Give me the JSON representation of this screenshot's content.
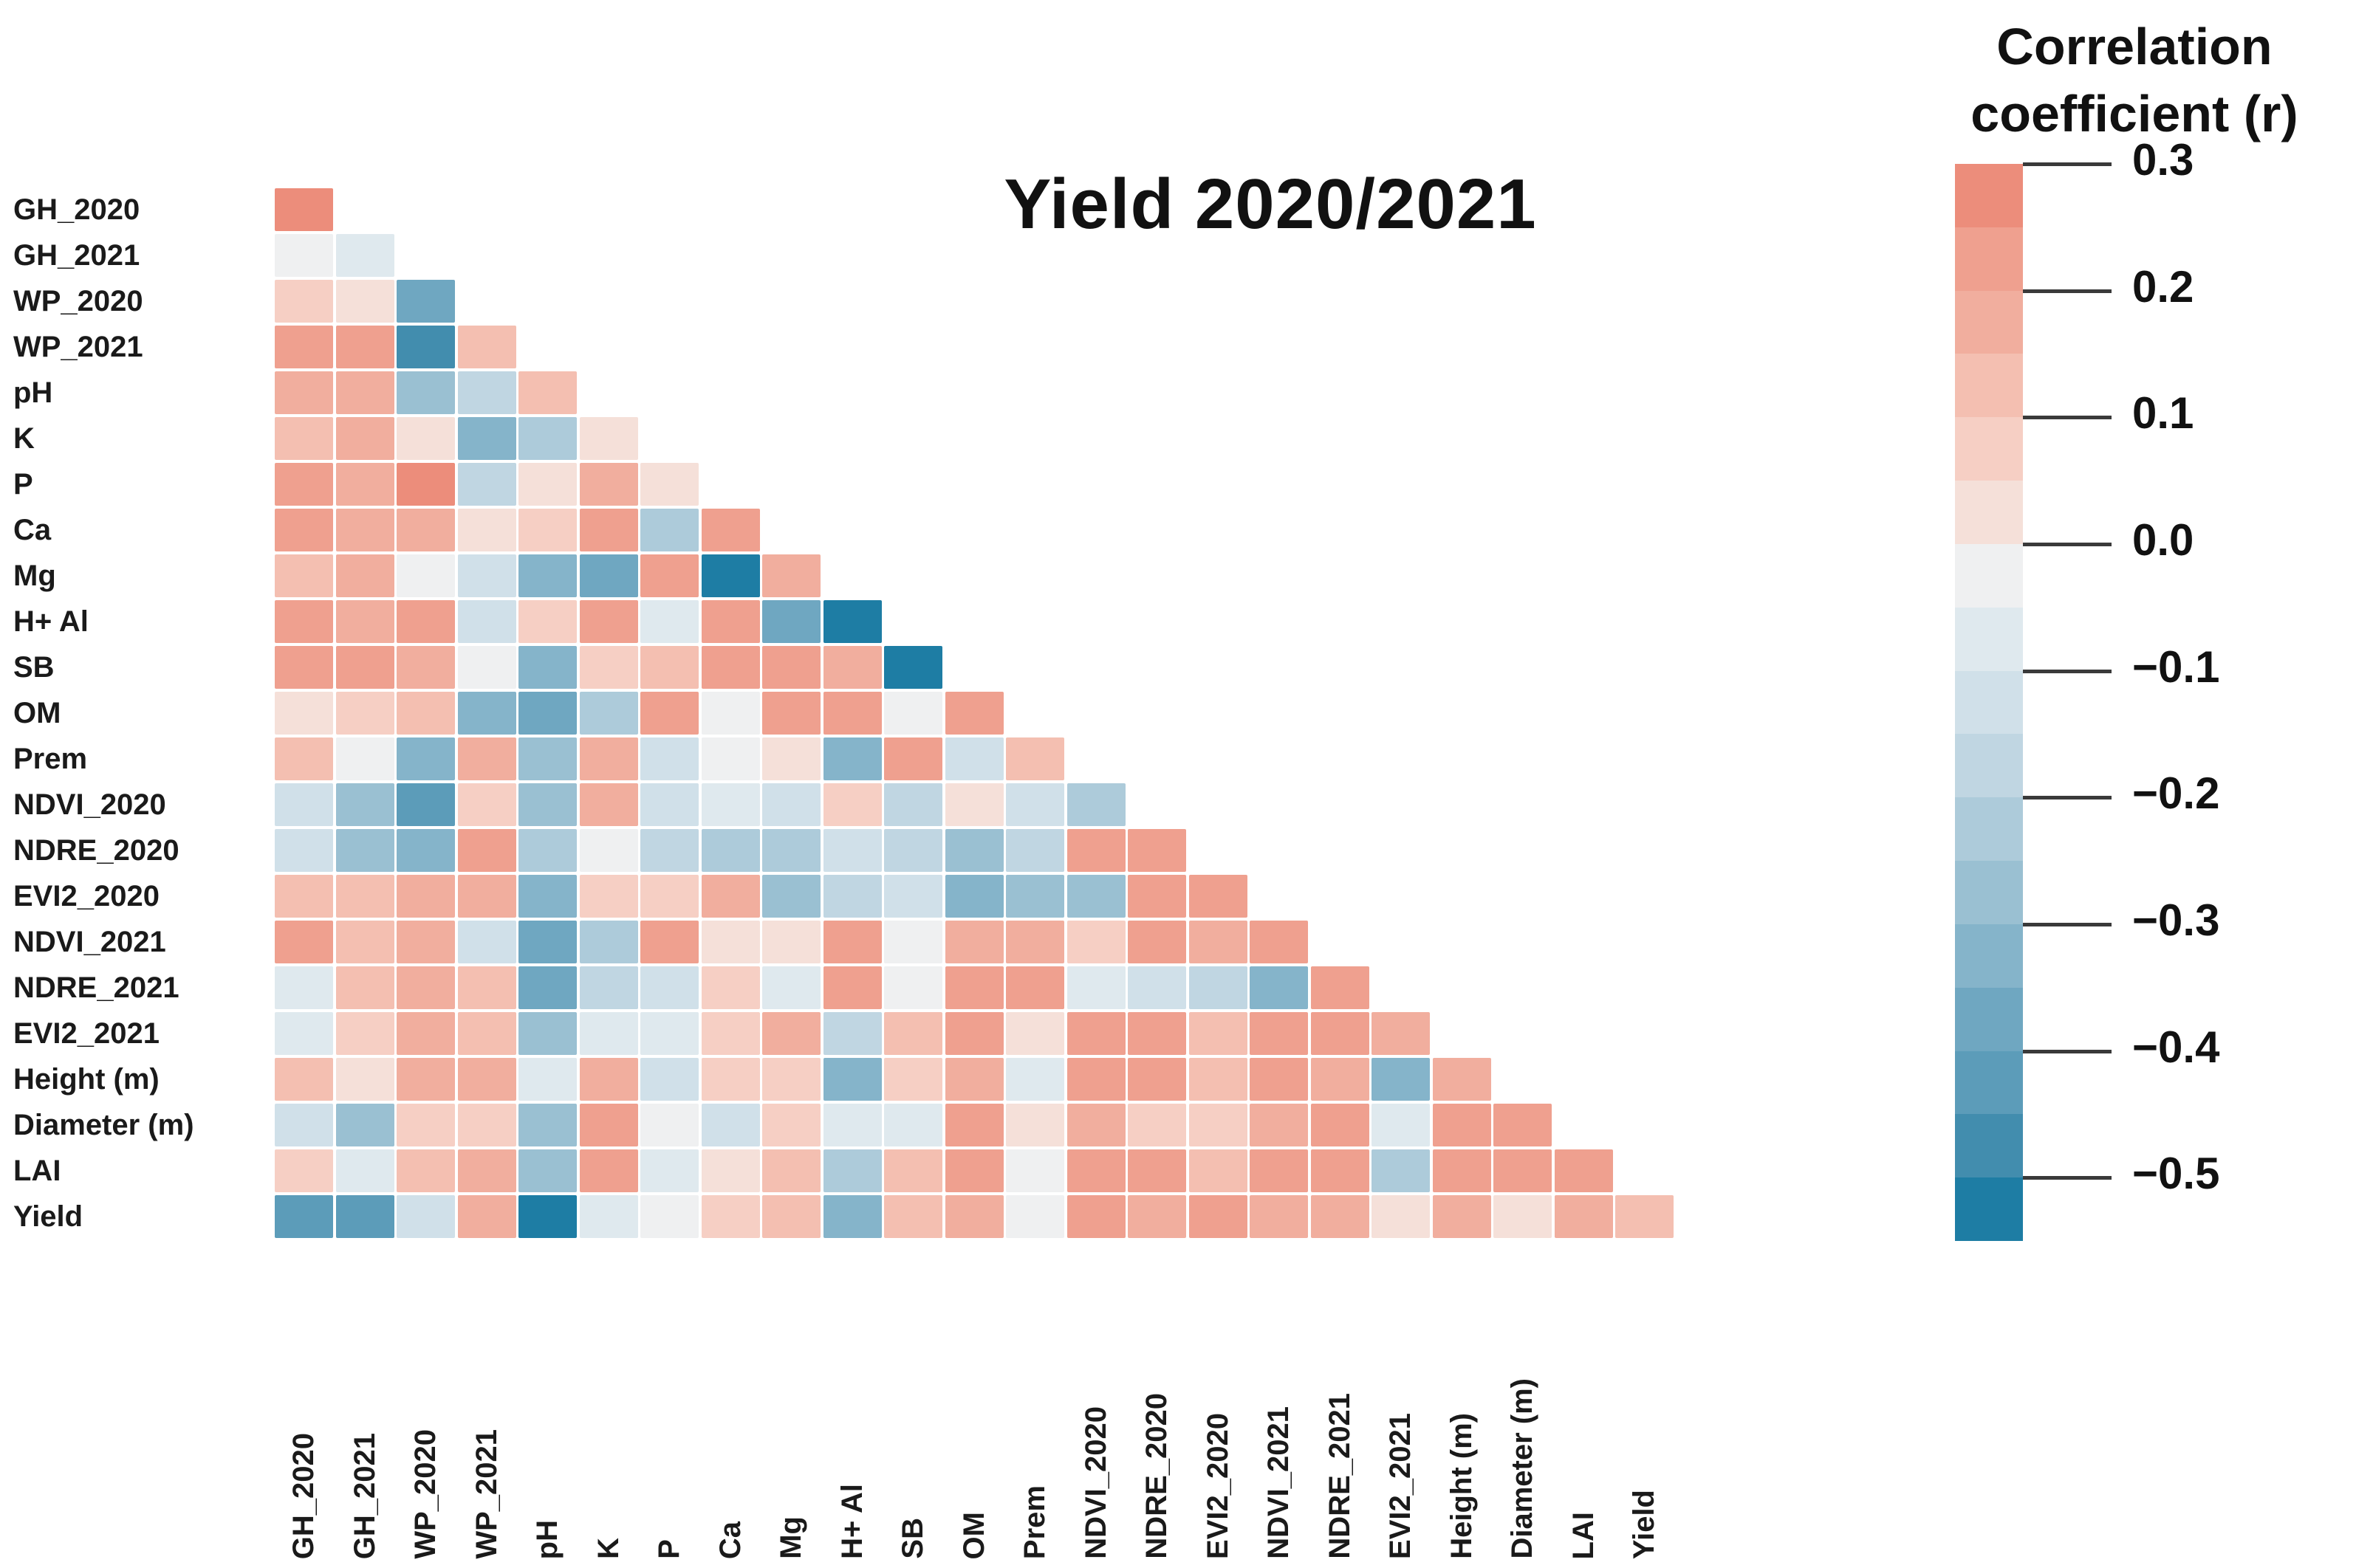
{
  "title": "Yield 2020/2021",
  "legend": {
    "title_line1": "Correlation",
    "title_line2": "coefficient (r)",
    "tick_labels": [
      "0.3",
      "0.2",
      "0.1",
      "0.0",
      "−0.1",
      "−0.2",
      "−0.3",
      "−0.4",
      "−0.5"
    ]
  },
  "chart_data": {
    "type": "heatmap",
    "subtype": "lower-triangle correlation matrix",
    "title": "Yield 2020/2021",
    "legend_title": "Correlation coefficient (r)",
    "grid": false,
    "legend_position": "right",
    "variables": [
      "GH_2020",
      "GH_2021",
      "WP_2020",
      "WP_2021",
      "pH",
      "K",
      "P",
      "Ca",
      "Mg",
      "H+ Al",
      "SB",
      "OM",
      "Prem",
      "NDVI_2020",
      "NDRE_2020",
      "EVI2_2020",
      "NDVI_2021",
      "NDRE_2021",
      "EVI2_2021",
      "Height (m)",
      "Diameter (m)",
      "LAI",
      "Yield"
    ],
    "rows": [
      {
        "label": "GH_2020",
        "values": [
          0.28
        ]
      },
      {
        "label": "GH_2021",
        "values": [
          -0.03,
          -0.06
        ]
      },
      {
        "label": "WP_2020",
        "values": [
          0.09,
          0.05,
          -0.35
        ]
      },
      {
        "label": "WP_2021",
        "values": [
          0.22,
          0.22,
          -0.45,
          0.15
        ]
      },
      {
        "label": "pH",
        "values": [
          0.17,
          0.18,
          -0.25,
          -0.18,
          0.15
        ]
      },
      {
        "label": "K",
        "values": [
          0.15,
          0.16,
          0.04,
          -0.3,
          -0.22,
          0.05
        ]
      },
      {
        "label": "P",
        "values": [
          0.25,
          0.2,
          0.26,
          -0.15,
          0.02,
          0.18,
          0.04
        ]
      },
      {
        "label": "Ca",
        "values": [
          0.22,
          0.2,
          0.2,
          0.05,
          0.1,
          0.22,
          -0.2,
          0.22
        ]
      },
      {
        "label": "Mg",
        "values": [
          0.12,
          0.16,
          0.0,
          -0.12,
          -0.3,
          -0.38,
          0.22,
          -0.5,
          0.2
        ]
      },
      {
        "label": "H+ Al",
        "values": [
          0.24,
          0.2,
          0.24,
          -0.1,
          0.08,
          0.24,
          -0.08,
          0.24,
          -0.35,
          -0.52
        ]
      },
      {
        "label": "SB",
        "values": [
          0.24,
          0.24,
          0.18,
          -0.02,
          -0.3,
          0.1,
          0.12,
          0.25,
          0.22,
          0.2,
          -0.5
        ]
      },
      {
        "label": "OM",
        "values": [
          0.02,
          0.1,
          0.15,
          -0.3,
          -0.35,
          -0.2,
          0.25,
          0.0,
          0.22,
          0.22,
          0.0,
          0.22
        ]
      },
      {
        "label": "Prem",
        "values": [
          0.12,
          -0.02,
          -0.3,
          0.16,
          -0.25,
          0.16,
          -0.1,
          -0.02,
          0.02,
          -0.3,
          0.24,
          -0.12,
          0.12
        ]
      },
      {
        "label": "NDVI_2020",
        "values": [
          -0.1,
          -0.25,
          -0.4,
          0.06,
          -0.28,
          0.18,
          -0.12,
          -0.08,
          -0.1,
          0.08,
          -0.18,
          0.03,
          -0.1,
          -0.22
        ]
      },
      {
        "label": "NDRE_2020",
        "values": [
          -0.1,
          -0.25,
          -0.3,
          0.24,
          -0.22,
          -0.04,
          -0.18,
          -0.22,
          -0.2,
          -0.1,
          -0.17,
          -0.25,
          -0.18,
          0.24,
          0.22
        ]
      },
      {
        "label": "EVI2_2020",
        "values": [
          0.12,
          0.12,
          0.16,
          0.2,
          -0.3,
          0.07,
          0.07,
          0.16,
          -0.25,
          -0.15,
          -0.1,
          -0.3,
          -0.25,
          -0.25,
          0.25,
          0.25
        ]
      },
      {
        "label": "NDVI_2021",
        "values": [
          0.22,
          0.12,
          0.2,
          -0.1,
          -0.35,
          -0.2,
          0.25,
          0.02,
          0.05,
          0.22,
          -0.04,
          0.2,
          0.16,
          0.1,
          0.24,
          0.2,
          0.22
        ]
      },
      {
        "label": "NDRE_2021",
        "values": [
          -0.08,
          0.12,
          0.2,
          0.12,
          -0.35,
          -0.15,
          -0.12,
          0.08,
          -0.08,
          0.24,
          -0.03,
          0.24,
          0.24,
          -0.05,
          -0.1,
          -0.18,
          -0.3,
          0.24
        ]
      },
      {
        "label": "EVI2_2021",
        "values": [
          -0.08,
          0.06,
          0.2,
          0.15,
          -0.28,
          -0.08,
          -0.08,
          0.1,
          0.18,
          -0.15,
          0.12,
          0.22,
          0.02,
          0.24,
          0.24,
          0.12,
          0.24,
          0.24,
          0.18
        ]
      },
      {
        "label": "Height (m)",
        "values": [
          0.12,
          0.02,
          0.2,
          0.16,
          -0.08,
          0.16,
          -0.1,
          0.08,
          0.08,
          -0.3,
          0.08,
          0.16,
          -0.05,
          0.24,
          0.22,
          0.12,
          0.24,
          0.16,
          -0.3,
          0.18
        ]
      },
      {
        "label": "Diameter (m)",
        "values": [
          -0.1,
          -0.25,
          0.1,
          0.06,
          -0.28,
          0.25,
          0.0,
          -0.1,
          0.06,
          -0.08,
          -0.06,
          0.24,
          0.03,
          0.16,
          0.1,
          0.1,
          0.16,
          0.24,
          -0.08,
          0.24,
          0.24
        ]
      },
      {
        "label": "LAI",
        "values": [
          0.1,
          -0.08,
          0.12,
          0.16,
          -0.25,
          0.25,
          -0.05,
          0.04,
          0.14,
          -0.2,
          0.12,
          0.22,
          0.0,
          0.24,
          0.22,
          0.12,
          0.24,
          0.22,
          -0.2,
          0.24,
          0.22,
          0.24
        ]
      },
      {
        "label": "Yield",
        "values": [
          -0.42,
          -0.4,
          -0.12,
          0.16,
          -0.5,
          -0.08,
          0.0,
          0.08,
          0.12,
          -0.3,
          0.12,
          0.2,
          -0.03,
          0.22,
          0.16,
          0.24,
          0.16,
          0.2,
          0.03,
          0.2,
          0.02,
          0.2,
          0.15
        ]
      }
    ],
    "colorbar": {
      "max": 0.3,
      "min": -0.55,
      "step": 0.05,
      "tick_values": [
        0.3,
        0.2,
        0.1,
        0.0,
        -0.1,
        -0.2,
        -0.3,
        -0.4,
        -0.5
      ],
      "band_colors": [
        "#ec8d7b",
        "#efa08f",
        "#f1ae9e",
        "#f4bfb1",
        "#f6cfc4",
        "#f5e0d9",
        "#eff0f1",
        "#dfe9ee",
        "#d0e0e9",
        "#c0d6e2",
        "#adcbda",
        "#9ac0d2",
        "#85b4ca",
        "#6fa7c1",
        "#5c9cb9",
        "#428dae",
        "#1e7da4"
      ],
      "positive_color": "#ec8d7b",
      "zero_color": "#f2f0ef",
      "negative_color": "#1e7da4"
    }
  }
}
